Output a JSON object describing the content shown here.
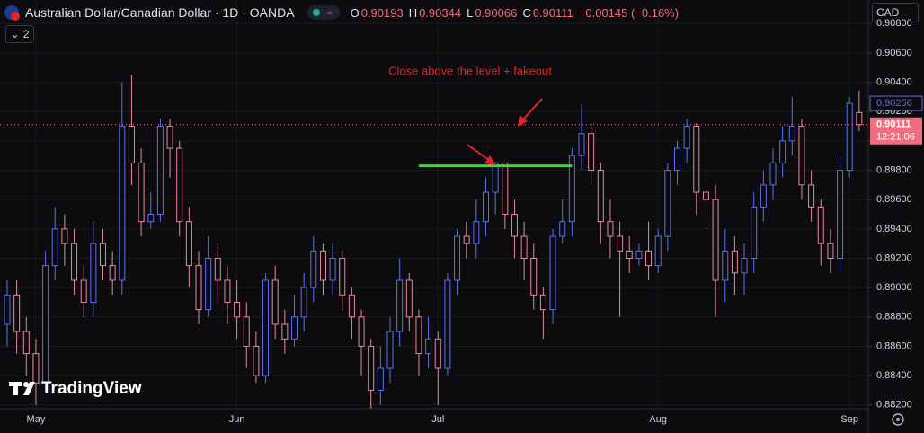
{
  "header": {
    "symbol": "Australian Dollar/Canadian Dollar · 1D · OANDA",
    "o": "O",
    "h": "H",
    "l": "L",
    "c": "C",
    "change": "−0.00145 (−0.16%)",
    "indicators": "2",
    "currency": "CAD",
    "countdown": "12:21:06",
    "watermark": "TradingView"
  },
  "chart_data": {
    "type": "candlestick",
    "annotation": "Close above the level + fakeout",
    "categories": [
      null,
      null,
      null,
      "May",
      null,
      null,
      null,
      null,
      null,
      null,
      null,
      null,
      null,
      null,
      null,
      null,
      null,
      null,
      null,
      null,
      null,
      null,
      null,
      null,
      "Jun",
      null,
      null,
      null,
      null,
      null,
      null,
      null,
      null,
      null,
      null,
      null,
      null,
      null,
      null,
      null,
      null,
      null,
      null,
      null,
      null,
      "Jul",
      null,
      null,
      null,
      null,
      null,
      null,
      null,
      null,
      null,
      null,
      null,
      null,
      null,
      null,
      null,
      null,
      null,
      null,
      null,
      null,
      null,
      null,
      "Aug",
      null,
      null,
      null,
      null,
      null,
      null,
      null,
      null,
      null,
      null,
      null,
      null,
      null,
      null,
      null,
      null,
      null,
      null,
      null,
      "Sep",
      null
    ],
    "open": [
      0.8875,
      0.8895,
      0.887,
      0.8855,
      0.8835,
      0.8915,
      0.894,
      0.893,
      0.8905,
      0.889,
      0.893,
      0.8915,
      0.8905,
      0.901,
      0.8985,
      0.8945,
      0.895,
      0.901,
      0.8995,
      0.8945,
      0.8915,
      0.8885,
      0.892,
      0.8905,
      0.889,
      0.888,
      0.886,
      0.884,
      0.8905,
      0.8875,
      0.8865,
      0.888,
      0.89,
      0.8925,
      0.8905,
      0.892,
      0.8895,
      0.888,
      0.886,
      0.883,
      0.8845,
      0.887,
      0.8905,
      0.888,
      0.8855,
      0.8865,
      0.8845,
      0.8905,
      0.8935,
      0.893,
      0.8945,
      0.8965,
      0.8985,
      0.895,
      0.8935,
      0.892,
      0.8895,
      0.8885,
      0.8935,
      0.8945,
      0.899,
      0.9005,
      0.898,
      0.8945,
      0.8935,
      0.8925,
      0.892,
      0.8925,
      0.8915,
      0.8935,
      0.898,
      0.8995,
      0.901,
      0.8965,
      0.896,
      0.8905,
      0.8925,
      0.891,
      0.892,
      0.8955,
      0.897,
      0.8985,
      0.9,
      0.901,
      0.897,
      0.8955,
      0.893,
      0.892,
      0.898,
      0.90193
    ],
    "high": [
      0.8905,
      0.8905,
      0.888,
      0.8865,
      0.8925,
      0.8955,
      0.895,
      0.894,
      0.8915,
      0.8945,
      0.894,
      0.8925,
      0.904,
      0.9045,
      0.8995,
      0.8965,
      0.9015,
      0.9015,
      0.9,
      0.8955,
      0.8925,
      0.8935,
      0.893,
      0.8915,
      0.8905,
      0.889,
      0.887,
      0.891,
      0.8915,
      0.8885,
      0.8895,
      0.891,
      0.8935,
      0.893,
      0.893,
      0.8925,
      0.89,
      0.8885,
      0.8865,
      0.886,
      0.888,
      0.892,
      0.891,
      0.8885,
      0.888,
      0.887,
      0.891,
      0.894,
      0.8945,
      0.896,
      0.8975,
      0.8985,
      0.8985,
      0.896,
      0.8945,
      0.893,
      0.89,
      0.894,
      0.896,
      0.8995,
      0.9025,
      0.9012,
      0.8985,
      0.896,
      0.8945,
      0.8935,
      0.893,
      0.8945,
      0.894,
      0.8985,
      0.9,
      0.9015,
      0.9012,
      0.8975,
      0.897,
      0.894,
      0.8935,
      0.893,
      0.8965,
      0.898,
      0.8995,
      0.901,
      0.903,
      0.9015,
      0.898,
      0.896,
      0.894,
      0.899,
      0.903,
      0.90344
    ],
    "low": [
      0.886,
      0.8855,
      0.884,
      0.882,
      0.883,
      0.8905,
      0.8915,
      0.8895,
      0.888,
      0.888,
      0.8905,
      0.8895,
      0.8895,
      0.897,
      0.8935,
      0.894,
      0.8945,
      0.8975,
      0.8935,
      0.89,
      0.8875,
      0.888,
      0.889,
      0.8875,
      0.8865,
      0.8845,
      0.8835,
      0.8835,
      0.8865,
      0.8855,
      0.886,
      0.887,
      0.889,
      0.8895,
      0.8895,
      0.8885,
      0.8865,
      0.884,
      0.8815,
      0.882,
      0.8835,
      0.886,
      0.887,
      0.884,
      0.8845,
      0.882,
      0.884,
      0.8895,
      0.892,
      0.892,
      0.8935,
      0.895,
      0.894,
      0.892,
      0.8905,
      0.8885,
      0.8865,
      0.8875,
      0.893,
      0.8935,
      0.898,
      0.897,
      0.893,
      0.892,
      0.888,
      0.891,
      0.8915,
      0.8905,
      0.891,
      0.8925,
      0.897,
      0.8985,
      0.895,
      0.894,
      0.888,
      0.889,
      0.8895,
      0.8895,
      0.891,
      0.8945,
      0.896,
      0.8975,
      0.899,
      0.896,
      0.8945,
      0.8915,
      0.891,
      0.891,
      0.8975,
      0.90066
    ],
    "close": [
      0.8895,
      0.887,
      0.8855,
      0.8835,
      0.8915,
      0.894,
      0.893,
      0.8905,
      0.889,
      0.893,
      0.8915,
      0.8905,
      0.901,
      0.8985,
      0.8945,
      0.895,
      0.901,
      0.8995,
      0.8945,
      0.8915,
      0.8885,
      0.892,
      0.8905,
      0.889,
      0.888,
      0.886,
      0.884,
      0.8905,
      0.8875,
      0.8865,
      0.888,
      0.89,
      0.8925,
      0.8905,
      0.892,
      0.8895,
      0.888,
      0.886,
      0.883,
      0.8845,
      0.887,
      0.8905,
      0.888,
      0.8855,
      0.8865,
      0.8845,
      0.8905,
      0.8935,
      0.893,
      0.8945,
      0.8965,
      0.8985,
      0.895,
      0.8935,
      0.892,
      0.8895,
      0.8885,
      0.8935,
      0.8945,
      0.899,
      0.9005,
      0.898,
      0.8945,
      0.8935,
      0.8925,
      0.892,
      0.8925,
      0.8915,
      0.8935,
      0.898,
      0.8995,
      0.901,
      0.8965,
      0.896,
      0.8905,
      0.8925,
      0.891,
      0.892,
      0.8955,
      0.897,
      0.8985,
      0.9,
      0.901,
      0.897,
      0.8955,
      0.893,
      0.892,
      0.898,
      0.90256,
      0.90111
    ],
    "up_color": "#5b6ef0",
    "down_color": "#e88a9c",
    "level_line": {
      "value": 0.8983,
      "from": 43,
      "to": 59,
      "color": "#33e02a"
    },
    "ylim": [
      0.88174,
      0.90961
    ],
    "yticks": [
      {
        "value": 0.908,
        "label": "0.90800"
      },
      {
        "value": 0.906,
        "label": "0.90600"
      },
      {
        "value": 0.904,
        "label": "0.90400"
      },
      {
        "value": 0.902,
        "label": "0.90200"
      },
      {
        "value": 0.9,
        "label": "0.90000"
      },
      {
        "value": 0.898,
        "label": "0.89800"
      },
      {
        "value": 0.896,
        "label": "0.89600"
      },
      {
        "value": 0.894,
        "label": "0.89400"
      },
      {
        "value": 0.892,
        "label": "0.89200"
      },
      {
        "value": 0.89,
        "label": "0.89000"
      },
      {
        "value": 0.888,
        "label": "0.88800"
      },
      {
        "value": 0.886,
        "label": "0.88600"
      },
      {
        "value": 0.884,
        "label": "0.88400"
      },
      {
        "value": 0.882,
        "label": "0.88200"
      }
    ],
    "grid": true
  }
}
